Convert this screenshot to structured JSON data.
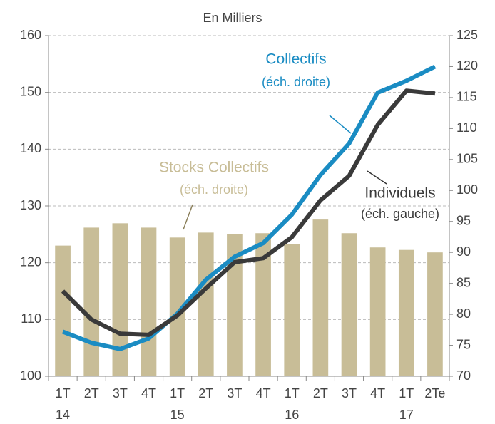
{
  "chart_data": {
    "type": "combo",
    "title": "En Milliers",
    "categories": [
      "1T",
      "2T",
      "3T",
      "4T",
      "1T",
      "2T",
      "3T",
      "4T",
      "1T",
      "2T",
      "3T",
      "4T",
      "1T",
      "2Te"
    ],
    "categories_year": [
      "14",
      null,
      null,
      null,
      "15",
      null,
      null,
      null,
      "16",
      null,
      null,
      null,
      "17",
      null
    ],
    "ylim": [
      100,
      160
    ],
    "yticks": [
      100,
      110,
      120,
      130,
      140,
      150,
      160
    ],
    "y2lim": [
      70,
      125
    ],
    "y2ticks": [
      70,
      75,
      80,
      85,
      90,
      95,
      100,
      105,
      110,
      115,
      120,
      125
    ],
    "grid": true,
    "series": [
      {
        "name": "Stocks Collectifs",
        "note": "(éch. droite)",
        "type": "bar",
        "axis": "y2",
        "color": "#c8bd97",
        "values": [
          91.1,
          94.0,
          94.7,
          94.0,
          92.4,
          93.2,
          92.9,
          93.1,
          91.4,
          95.3,
          93.1,
          90.8,
          90.4,
          90.0
        ]
      },
      {
        "name": "Collectifs",
        "note": "(éch. droite)",
        "type": "line",
        "axis": "y2",
        "color": "#1a8cc3",
        "values": [
          77.2,
          75.4,
          74.4,
          76.1,
          80.1,
          85.6,
          89.3,
          91.5,
          96.1,
          102.5,
          107.6,
          115.8,
          117.7,
          120.0
        ]
      },
      {
        "name": "Individuels",
        "note": "(éch. gauche)",
        "type": "line",
        "axis": "y",
        "color": "#3a3a3a",
        "values": [
          115.0,
          110.0,
          107.5,
          107.3,
          110.7,
          115.5,
          120.1,
          120.8,
          124.5,
          131.0,
          135.3,
          144.3,
          150.3,
          149.8
        ]
      }
    ]
  }
}
